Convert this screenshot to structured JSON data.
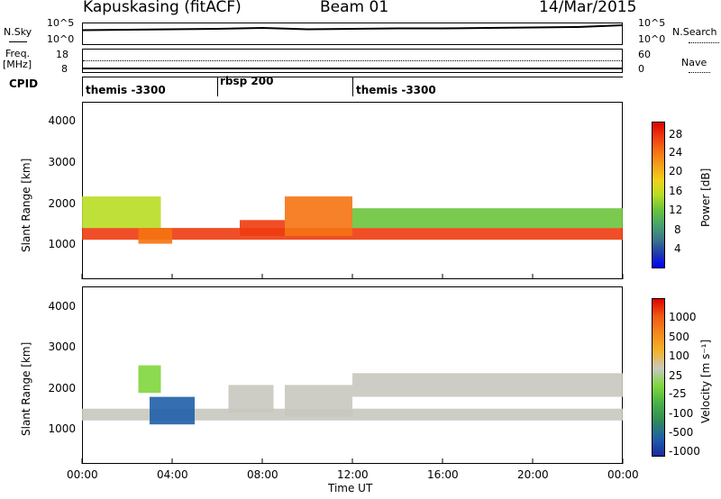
{
  "header": {
    "station": "Kapuskasing (fitACF)",
    "beam": "Beam 01",
    "date": "14/Mar/2015"
  },
  "top_panels": {
    "nsky_label": "N.Sky",
    "nsky_ticks": [
      "10^5",
      "10^0"
    ],
    "nsky_right_ticks": [
      "10^5",
      "10^0"
    ],
    "nsearch_label": "N.Search",
    "freq_label": "Freq.",
    "freq_unit": "[MHz]",
    "freq_ticks": [
      "18",
      "8"
    ],
    "nave_label": "Nave",
    "nave_ticks": [
      "60",
      "0"
    ],
    "cpid_label": "CPID",
    "cpid_segments": [
      {
        "label": "themis -3300",
        "start_hour": 0
      },
      {
        "label": "rbsp 200",
        "start_hour": 6
      },
      {
        "label": "themis -3300",
        "start_hour": 12
      }
    ]
  },
  "power_panel": {
    "ylabel": "Slant Range [km]",
    "yticks": [
      "4000",
      "3000",
      "2000",
      "1000"
    ],
    "colorbar_label": "Power [dB]",
    "colorbar_ticks": [
      "28",
      "24",
      "20",
      "16",
      "12",
      "8",
      "4"
    ],
    "colorbar_colors": [
      "#0000ff",
      "#1f3fa8",
      "#3c7a8a",
      "#49a56a",
      "#6bc43c",
      "#b8dd22",
      "#f0d21a",
      "#f5a21a",
      "#f57312",
      "#ee3b0f",
      "#e00000"
    ]
  },
  "velocity_panel": {
    "ylabel": "Slant Range [km]",
    "yticks": [
      "4000",
      "3000",
      "2000",
      "1000"
    ],
    "colorbar_label": "Velocity [m s⁻¹]",
    "colorbar_ticks": [
      "1000",
      "500",
      "100",
      "25",
      "-25",
      "-100",
      "-500",
      "-1000"
    ],
    "colorbar_colors": [
      "#1a2aa0",
      "#1f5fa8",
      "#2f8a5a",
      "#48b048",
      "#7fd63c",
      "#c8c8c0",
      "#f3b32a",
      "#f58a1a",
      "#f05a14",
      "#e00000"
    ]
  },
  "xaxis": {
    "ticks": [
      "00:00",
      "04:00",
      "08:00",
      "12:00",
      "16:00",
      "20:00",
      "00:00"
    ],
    "label": "Time UT"
  },
  "chart_data": [
    {
      "type": "heatmap",
      "title": "Power [dB]",
      "xlabel": "Time UT",
      "ylabel": "Slant Range [km]",
      "xlim": [
        0,
        24
      ],
      "ylim": [
        0,
        4500
      ],
      "colorbar": {
        "label": "Power [dB]",
        "range": [
          0,
          30
        ]
      },
      "regions": [
        {
          "x": [
            0,
            24
          ],
          "y": [
            1000,
            1300
          ],
          "value": 27
        },
        {
          "x": [
            0,
            3.5
          ],
          "y": [
            1300,
            2100
          ],
          "value": 14
        },
        {
          "x": [
            2.5,
            4.0
          ],
          "y": [
            900,
            1300
          ],
          "value": 24
        },
        {
          "x": [
            7.0,
            9.0
          ],
          "y": [
            1100,
            1500
          ],
          "value": 26
        },
        {
          "x": [
            9.0,
            12.0
          ],
          "y": [
            1100,
            2100
          ],
          "value": 22
        },
        {
          "x": [
            12.0,
            24
          ],
          "y": [
            1300,
            1800
          ],
          "value": 12
        }
      ]
    },
    {
      "type": "heatmap",
      "title": "Velocity [m s-1]",
      "xlabel": "Time UT",
      "ylabel": "Slant Range [km]",
      "xlim": [
        0,
        24
      ],
      "ylim": [
        0,
        4500
      ],
      "colorbar": {
        "label": "Velocity [m s-1]",
        "range": [
          -1000,
          1000
        ]
      },
      "regions": [
        {
          "x": [
            0,
            24
          ],
          "y": [
            1100,
            1400
          ],
          "value": 0
        },
        {
          "x": [
            3.0,
            5.0
          ],
          "y": [
            1000,
            1700
          ],
          "value": -800
        },
        {
          "x": [
            6.5,
            8.5
          ],
          "y": [
            1300,
            2000
          ],
          "value": 150
        },
        {
          "x": [
            9.0,
            12.0
          ],
          "y": [
            1200,
            2000
          ],
          "value": 150
        },
        {
          "x": [
            2.5,
            3.5
          ],
          "y": [
            1800,
            2500
          ],
          "value": -150
        },
        {
          "x": [
            12.0,
            24
          ],
          "y": [
            1700,
            2300
          ],
          "value": 0
        }
      ]
    },
    {
      "type": "line",
      "title": "N.Sky",
      "x": [
        0,
        2,
        4,
        6,
        8,
        10,
        12,
        14,
        16,
        18,
        20,
        22,
        24
      ],
      "values": [
        3.3,
        3.4,
        3.5,
        3.6,
        3.8,
        3.5,
        3.6,
        3.7,
        3.7,
        3.8,
        3.9,
        4.0,
        4.4
      ],
      "ylim": [
        0,
        5
      ]
    }
  ]
}
